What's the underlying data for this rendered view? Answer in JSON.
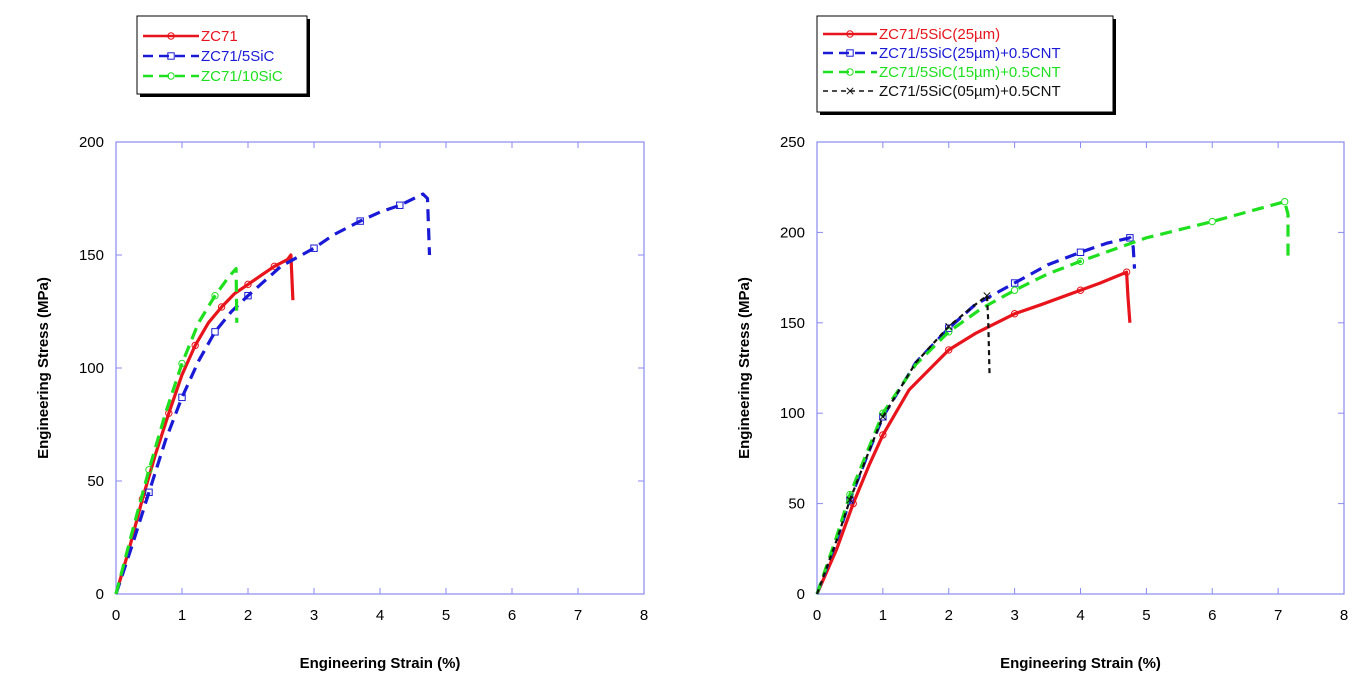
{
  "chart_data": [
    {
      "type": "line",
      "title": "",
      "xlabel": "Engineering Strain (%)",
      "ylabel": "Engineering Stress (MPa)",
      "xlim": [
        0,
        8
      ],
      "ylim": [
        0,
        200
      ],
      "x_ticks": [
        "0",
        "1",
        "2",
        "3",
        "4",
        "5",
        "6",
        "7",
        "8"
      ],
      "y_ticks": [
        "0",
        "50",
        "100",
        "150",
        "200"
      ],
      "grid": false,
      "legend": "top-left, outside plot area",
      "series": [
        {
          "name": "ZC71",
          "color": "#e8141c",
          "dash": "solid",
          "marker": "circle",
          "x": [
            0,
            0.2,
            0.4,
            0.6,
            0.8,
            1.0,
            1.2,
            1.4,
            1.6,
            1.8,
            2.0,
            2.2,
            2.4,
            2.6,
            2.65,
            2.68
          ],
          "y": [
            0,
            20,
            42,
            62,
            80,
            97,
            110,
            120,
            127,
            133,
            137,
            141,
            145,
            148,
            150,
            130
          ]
        },
        {
          "name": "ZC71/5SiC",
          "color": "#1a1ad6",
          "dash": "dash",
          "marker": "square",
          "x": [
            0,
            0.25,
            0.5,
            0.75,
            1.0,
            1.25,
            1.5,
            1.75,
            2.0,
            2.5,
            3.0,
            3.3,
            3.7,
            4.0,
            4.3,
            4.65,
            4.72,
            4.75
          ],
          "y": [
            0,
            22,
            45,
            68,
            87,
            103,
            116,
            125,
            132,
            145,
            153,
            159,
            165,
            169,
            172,
            177,
            175,
            150
          ]
        },
        {
          "name": "ZC71/10SiC",
          "color": "#1ee01e",
          "dash": "dash",
          "marker": "circle",
          "x": [
            0,
            0.25,
            0.5,
            0.75,
            1.0,
            1.25,
            1.5,
            1.7,
            1.82,
            1.83
          ],
          "y": [
            0,
            28,
            55,
            80,
            102,
            120,
            132,
            140,
            144,
            120
          ]
        }
      ]
    },
    {
      "type": "line",
      "title": "",
      "xlabel": "Engineering Strain (%)",
      "ylabel": "Engineering Stress (MPa)",
      "xlim": [
        0,
        8
      ],
      "ylim": [
        0,
        250
      ],
      "x_ticks": [
        "0",
        "1",
        "2",
        "3",
        "4",
        "5",
        "6",
        "7",
        "8"
      ],
      "y_ticks": [
        "0",
        "50",
        "100",
        "150",
        "200",
        "250"
      ],
      "grid": false,
      "legend": "top-left, outside plot area",
      "series": [
        {
          "name": "ZC71/5SiC(25µm)",
          "color": "#e8141c",
          "dash": "solid",
          "marker": "circle",
          "x": [
            0,
            0.3,
            0.55,
            0.8,
            1.0,
            1.4,
            2.0,
            2.4,
            3.0,
            3.4,
            4.0,
            4.3,
            4.7,
            4.72,
            4.75
          ],
          "y": [
            0,
            25,
            50,
            72,
            88,
            113,
            135,
            144,
            155,
            160,
            168,
            172,
            178,
            165,
            150
          ]
        },
        {
          "name": "ZC71/5SiC(25µm)+0.5CNT",
          "color": "#1a1ad6",
          "dash": "dash",
          "marker": "square",
          "x": [
            0,
            0.3,
            0.5,
            0.8,
            1.0,
            1.5,
            2.0,
            2.4,
            3.0,
            3.5,
            4.0,
            4.4,
            4.75,
            4.8,
            4.82
          ],
          "y": [
            0,
            30,
            52,
            80,
            98,
            128,
            147,
            160,
            172,
            182,
            189,
            194,
            197,
            192,
            180
          ]
        },
        {
          "name": "ZC71/5SiC(15µm)+0.5CNT",
          "color": "#1ee01e",
          "dash": "dash",
          "marker": "circle",
          "x": [
            0,
            0.3,
            0.5,
            0.8,
            1.0,
            1.5,
            2.0,
            2.5,
            3.0,
            3.5,
            4.0,
            5.0,
            6.0,
            6.5,
            7.1,
            7.15,
            7.15
          ],
          "y": [
            0,
            32,
            55,
            82,
            100,
            127,
            145,
            158,
            168,
            177,
            184,
            197,
            206,
            211,
            217,
            210,
            185
          ]
        },
        {
          "name": "ZC71/5SiC(05µm)+0.5CNT",
          "color": "#111111",
          "dash": "dash",
          "marker": "x",
          "x": [
            0,
            0.3,
            0.5,
            0.8,
            1.0,
            1.5,
            2.0,
            2.4,
            2.58,
            2.6,
            2.62
          ],
          "y": [
            0,
            30,
            52,
            80,
            98,
            128,
            148,
            160,
            165,
            150,
            120
          ]
        }
      ]
    }
  ]
}
